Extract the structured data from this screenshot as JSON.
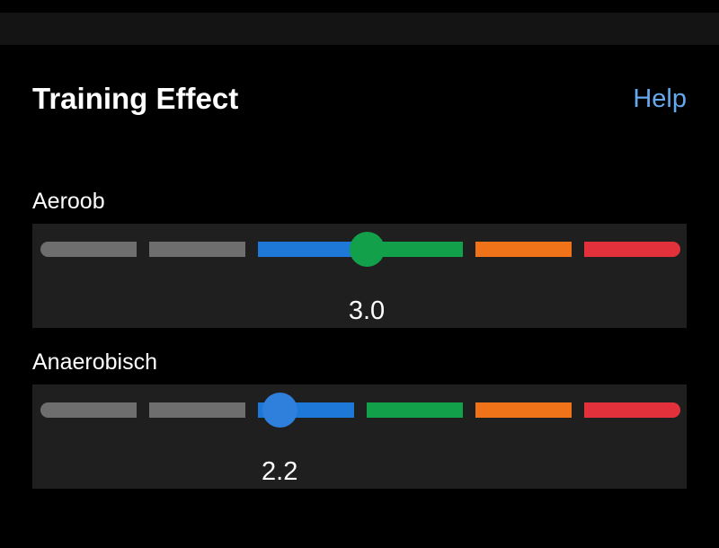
{
  "header": {
    "title": "Training Effect",
    "help_label": "Help"
  },
  "scale": {
    "min": 0,
    "max": 5,
    "segment_colors": [
      "#6e6e6e",
      "#6e6e6e",
      "#1e78d8",
      "#13a04a",
      "#f07219",
      "#e2313a"
    ]
  },
  "aerobic": {
    "label": "Aeroob",
    "value": "3.0",
    "knob_color": "#13a04a"
  },
  "anaerobic": {
    "label": "Anaerobisch",
    "value": "2.2",
    "knob_color": "#2f7fdc"
  }
}
